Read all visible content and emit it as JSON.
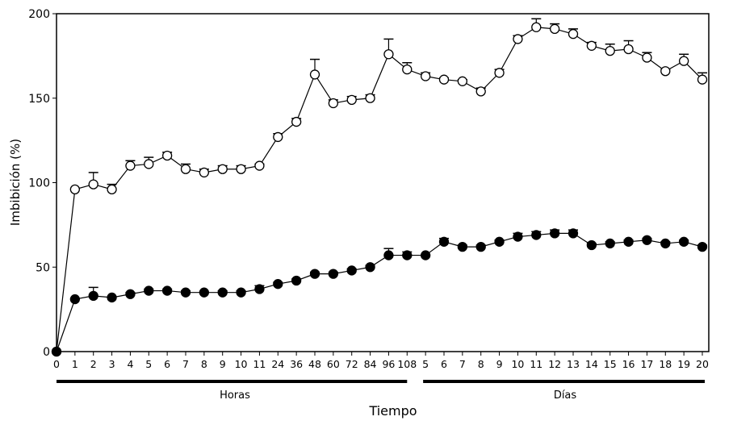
{
  "chart_data": {
    "type": "line",
    "title": "",
    "xlabel": "Tiempo",
    "ylabel": "Imbibición (%)",
    "ylim": [
      0,
      200
    ],
    "yticks": [
      "0",
      "50",
      "100",
      "150",
      "200"
    ],
    "categories": [
      "0",
      "1",
      "2",
      "3",
      "4",
      "5",
      "6",
      "7",
      "8",
      "9",
      "10",
      "11",
      "24",
      "36",
      "48",
      "60",
      "72",
      "84",
      "96",
      "108",
      "5",
      "6",
      "7",
      "8",
      "9",
      "10",
      "11",
      "12",
      "13",
      "14",
      "15",
      "16",
      "17",
      "18",
      "19",
      "20"
    ],
    "groups": [
      {
        "label": "Horas",
        "from": 0,
        "to": 19
      },
      {
        "label": "Días",
        "from": 20,
        "to": 35
      }
    ],
    "series": [
      {
        "name": "open",
        "marker": "open-circle",
        "values": [
          0,
          96,
          99,
          96,
          110,
          111,
          116,
          108,
          106,
          108,
          108,
          110,
          127,
          136,
          164,
          147,
          149,
          150,
          176,
          167,
          163,
          161,
          160,
          154,
          165,
          185,
          192,
          191,
          188,
          181,
          178,
          179,
          174,
          166,
          172,
          161
        ],
        "errors": [
          0,
          0,
          7,
          3,
          3,
          4,
          2,
          3,
          2,
          2,
          2,
          1,
          2,
          2,
          9,
          2,
          2,
          2,
          9,
          4,
          2,
          1,
          1,
          2,
          2,
          2,
          5,
          3,
          3,
          2,
          4,
          5,
          3,
          1,
          4,
          4
        ]
      },
      {
        "name": "filled",
        "marker": "filled-circle",
        "values": [
          0,
          31,
          33,
          32,
          34,
          36,
          36,
          35,
          35,
          35,
          35,
          37,
          40,
          42,
          46,
          46,
          48,
          50,
          57,
          57,
          57,
          65,
          62,
          62,
          65,
          68,
          69,
          70,
          70,
          63,
          64,
          65,
          66,
          64,
          65,
          62
        ],
        "errors": [
          0,
          0,
          5,
          0,
          1,
          1,
          1,
          1,
          0,
          1,
          1,
          2,
          1,
          1,
          1,
          1,
          1,
          1,
          4,
          2,
          0,
          2,
          1,
          1,
          1,
          2,
          2,
          2,
          2,
          1,
          1,
          1,
          1,
          1,
          1,
          1
        ]
      }
    ]
  }
}
